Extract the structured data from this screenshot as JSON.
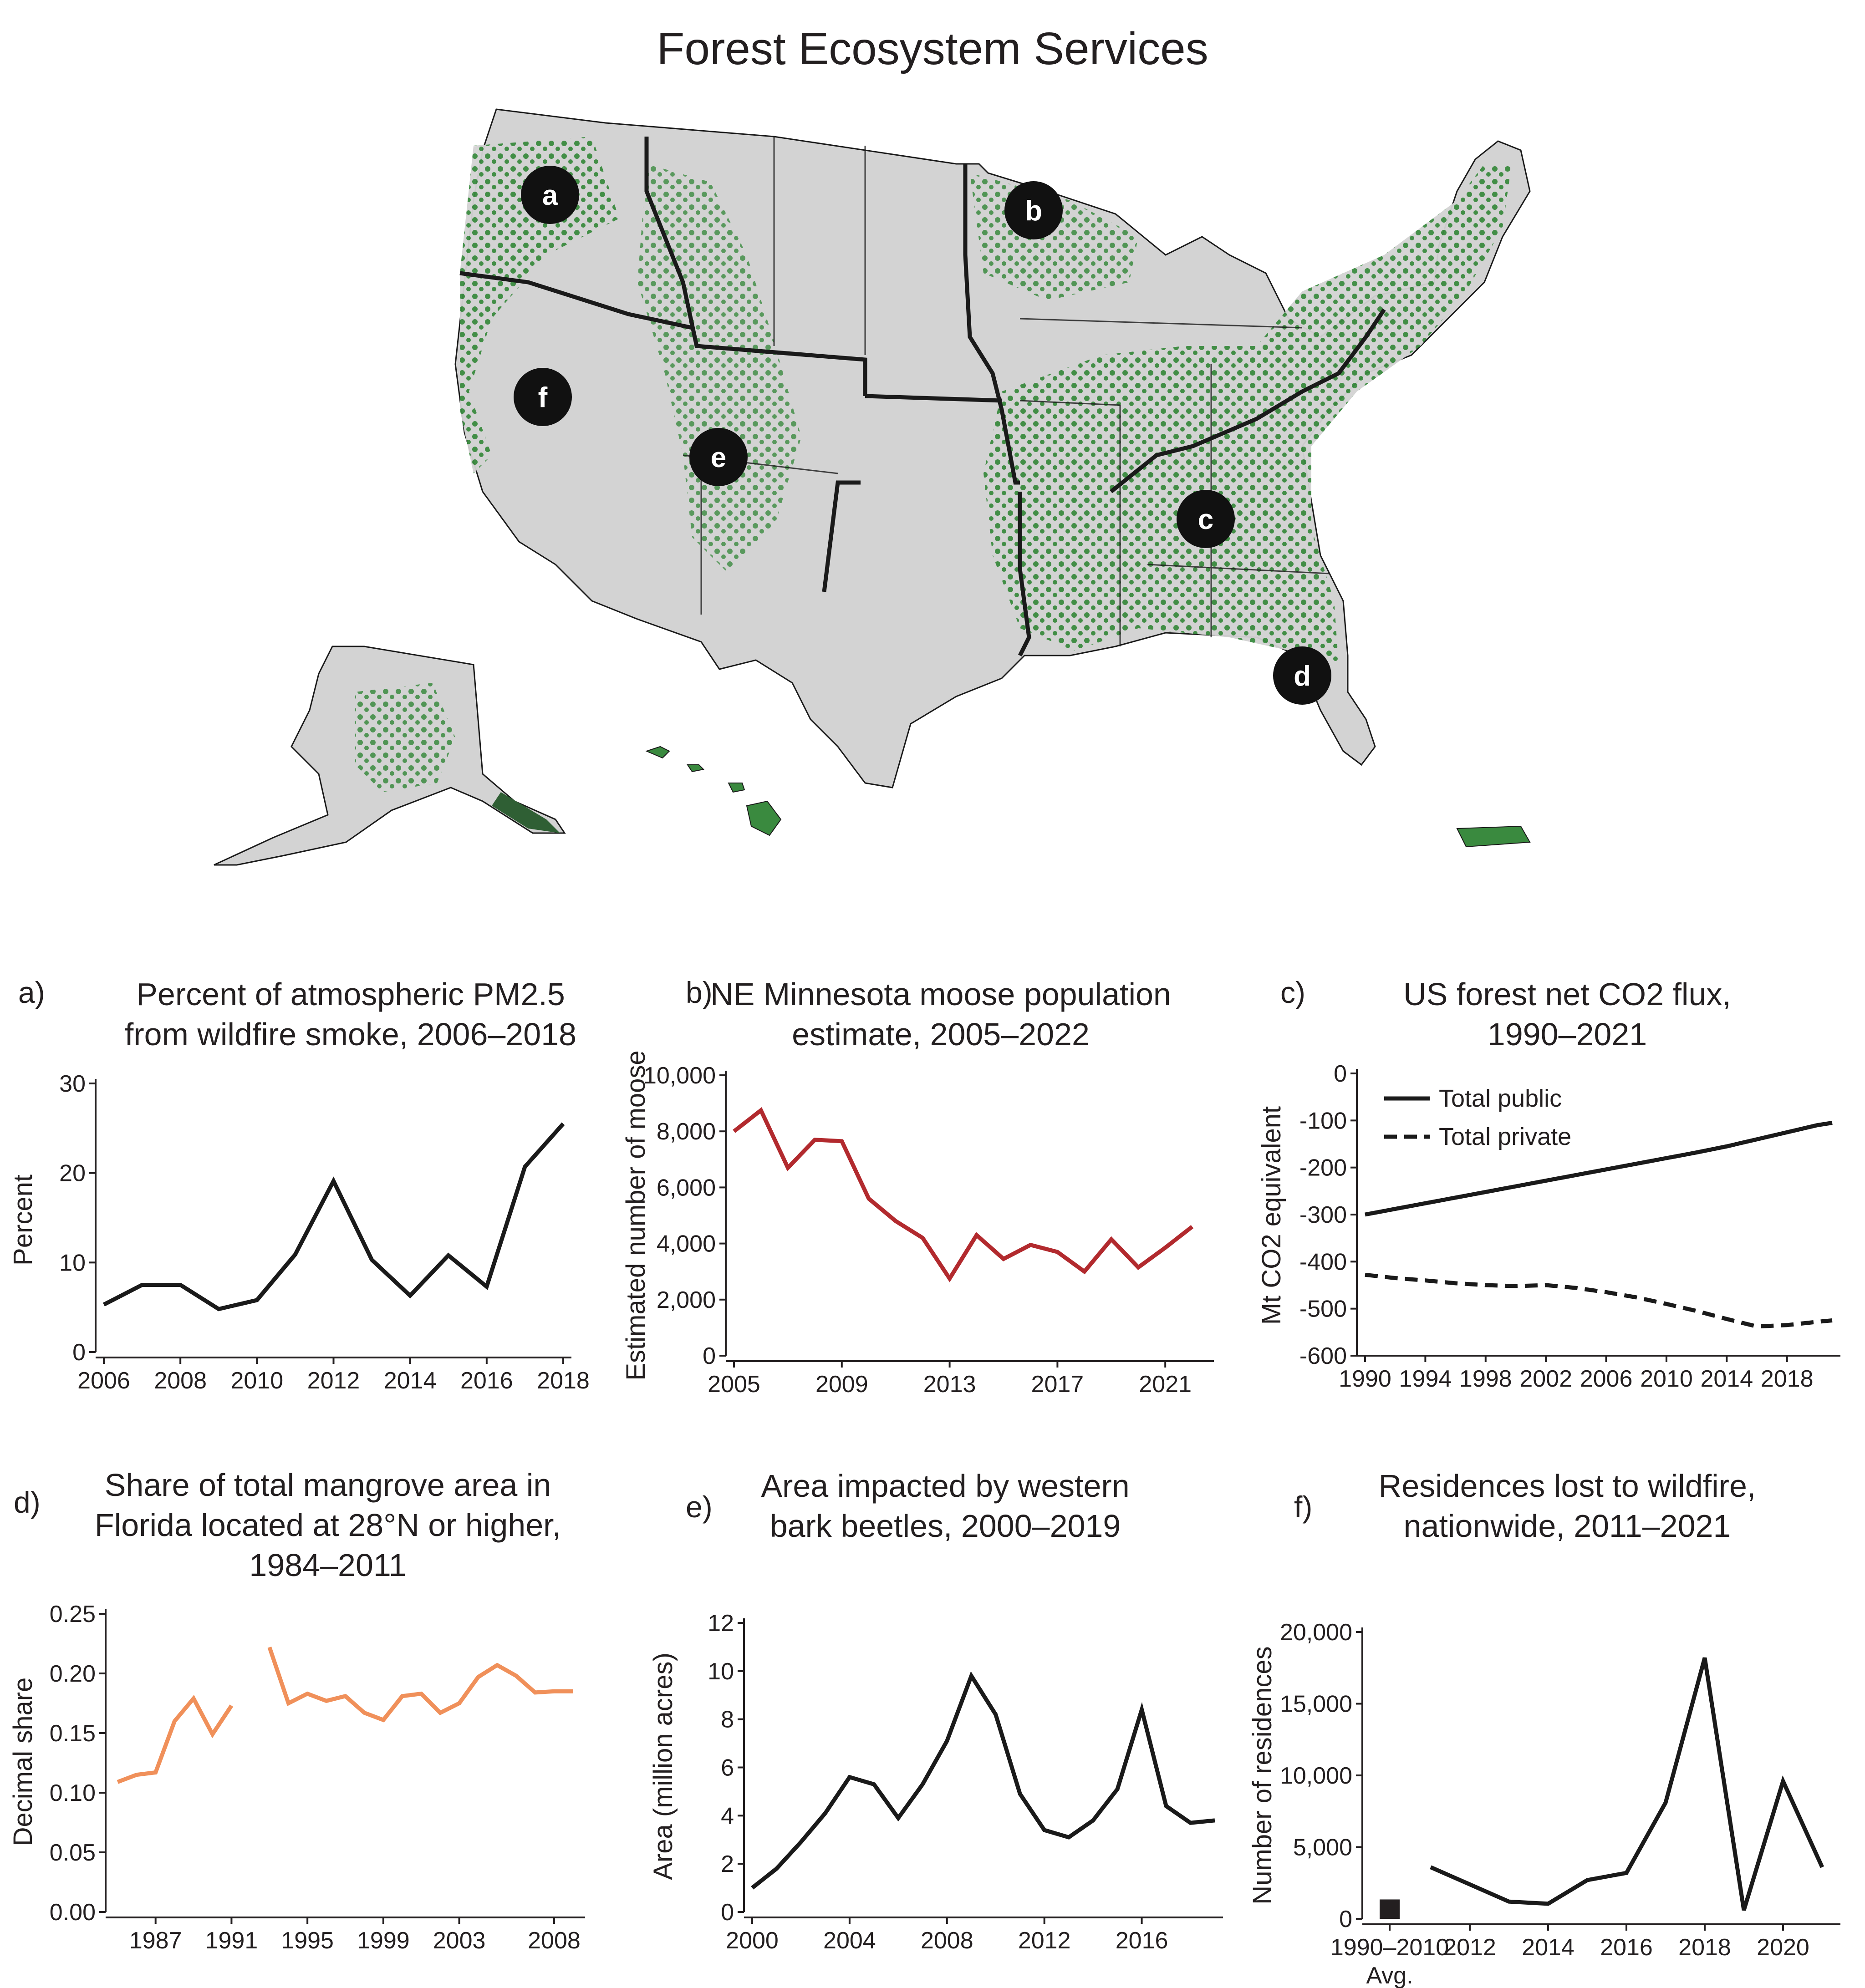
{
  "title": "Forest Ecosystem Services",
  "colors": {
    "forest": "#3a8a3f",
    "land": "#d3d3d3",
    "border": "#1a1a1a",
    "moose": "#b22a2e",
    "mangrove": "#f0905a",
    "line": "#1a1a1a"
  },
  "map": {
    "markers": [
      "a",
      "b",
      "c",
      "d",
      "e",
      "f"
    ]
  },
  "chart_data": [
    {
      "id": "a",
      "panel_letter": "a)",
      "type": "line",
      "title": "Percent of atmospheric PM2.5\nfrom wildfire smoke, 2006–2018",
      "ylabel": "Percent",
      "x": [
        2006,
        2007,
        2008,
        2009,
        2010,
        2011,
        2012,
        2013,
        2014,
        2015,
        2016,
        2017,
        2018
      ],
      "series": [
        {
          "values": [
            5.3,
            7.5,
            7.5,
            4.8,
            5.8,
            10.9,
            19.1,
            10.3,
            6.3,
            10.8,
            7.3,
            20.7,
            25.5
          ]
        }
      ],
      "xlim": [
        2006,
        2018
      ],
      "ylim": [
        0,
        30
      ],
      "xticks": [
        "2006",
        "2008",
        "2010",
        "2012",
        "2014",
        "2016",
        "2018"
      ],
      "yticks": [
        "0",
        "10",
        "20",
        "30"
      ],
      "color": "#1a1a1a"
    },
    {
      "id": "b",
      "panel_letter": "b)",
      "type": "line",
      "title": "NE Minnesota moose population\nestimate, 2005–2022",
      "ylabel": "Estimated number of moose",
      "x": [
        2005,
        2006,
        2007,
        2008,
        2009,
        2010,
        2011,
        2012,
        2013,
        2014,
        2015,
        2016,
        2017,
        2018,
        2019,
        2020,
        2021,
        2022
      ],
      "series": [
        {
          "values": [
            8000,
            8750,
            6700,
            7700,
            7650,
            5600,
            4800,
            4200,
            2750,
            4300,
            3450,
            3950,
            3700,
            3000,
            4150,
            3150,
            3850,
            4600
          ]
        }
      ],
      "xlim": [
        2005,
        2022.5
      ],
      "ylim": [
        0,
        10000
      ],
      "xticks": [
        "2005",
        "2009",
        "2013",
        "2017",
        "2021"
      ],
      "yticks": [
        "0",
        "2,000",
        "4,000",
        "6,000",
        "8,000",
        "10,000"
      ],
      "color": "#b22a2e"
    },
    {
      "id": "c",
      "panel_letter": "c)",
      "type": "line",
      "title": "US forest net CO2 flux,\n1990–2021",
      "ylabel": "Mt CO2 equivalent",
      "x": [
        1990,
        1992,
        1994,
        1996,
        1998,
        2000,
        2002,
        2004,
        2006,
        2008,
        2010,
        2012,
        2014,
        2016,
        2018,
        2020,
        2021
      ],
      "series": [
        {
          "name": "Total public",
          "dash": false,
          "values": [
            -300,
            -288,
            -276,
            -264,
            -252,
            -240,
            -228,
            -216,
            -204,
            -192,
            -180,
            -168,
            -155,
            -140,
            -125,
            -110,
            -105
          ]
        },
        {
          "name": "Total private",
          "dash": true,
          "values": [
            -428,
            -435,
            -440,
            -446,
            -450,
            -452,
            -450,
            -456,
            -465,
            -476,
            -490,
            -505,
            -522,
            -538,
            -535,
            -528,
            -525
          ]
        }
      ],
      "xlim": [
        1990,
        2021
      ],
      "ylim": [
        -600,
        0
      ],
      "xticks": [
        "1990",
        "1994",
        "1998",
        "2002",
        "2006",
        "2010",
        "2014",
        "2018"
      ],
      "yticks": [
        "-600",
        "-500",
        "-400",
        "-300",
        "-200",
        "-100",
        "0"
      ],
      "legend": "top-left",
      "color": "#1a1a1a"
    },
    {
      "id": "d",
      "panel_letter": "d)",
      "type": "line",
      "title": "Share of total mangrove area in\nFlorida located at 28°N or higher,\n1984–2011",
      "ylabel": "Decimal share",
      "x": [
        1985,
        1986,
        1987,
        1988,
        1989,
        1990,
        1991,
        1992,
        1993,
        1994,
        1995,
        1996,
        1997,
        1998,
        1999,
        2000,
        2001,
        2002,
        2003,
        2004,
        2005,
        2006,
        2007,
        2008,
        2009
      ],
      "series": [
        {
          "values": [
            0.109,
            0.115,
            0.117,
            0.16,
            0.179,
            0.149,
            0.173,
            null,
            0.222,
            0.175,
            0.183,
            0.177,
            0.181,
            0.167,
            0.161,
            0.181,
            0.183,
            0.167,
            0.175,
            0.197,
            0.207,
            0.198,
            0.184,
            0.185,
            0.185
          ]
        }
      ],
      "xlim": [
        1984.8,
        2009.2
      ],
      "ylim": [
        0,
        0.25
      ],
      "xticks": [
        "1987",
        "1991",
        "1995",
        "1999",
        "2003",
        "2008"
      ],
      "yticks": [
        "0.00",
        "0.05",
        "0.10",
        "0.15",
        "0.20",
        "0.25"
      ],
      "color": "#f0905a"
    },
    {
      "id": "e",
      "panel_letter": "e)",
      "type": "line",
      "title": "Area impacted by western\nbark beetles, 2000–2019",
      "ylabel": "Area (million acres)",
      "x": [
        2000,
        2001,
        2002,
        2003,
        2004,
        2005,
        2006,
        2007,
        2008,
        2009,
        2010,
        2011,
        2012,
        2013,
        2014,
        2015,
        2016,
        2017,
        2018,
        2019
      ],
      "series": [
        {
          "values": [
            1.0,
            1.8,
            2.9,
            4.1,
            5.6,
            5.3,
            3.9,
            5.3,
            7.1,
            9.8,
            8.2,
            4.9,
            3.4,
            3.1,
            3.8,
            5.1,
            8.4,
            4.4,
            3.7,
            3.8
          ]
        }
      ],
      "xlim": [
        2000,
        2019
      ],
      "ylim": [
        0,
        12
      ],
      "xticks": [
        "2000",
        "2004",
        "2008",
        "2012",
        "2016"
      ],
      "yticks": [
        "0",
        "2",
        "4",
        "6",
        "8",
        "10",
        "12"
      ],
      "color": "#1a1a1a"
    },
    {
      "id": "f",
      "panel_letter": "f)",
      "type": "line",
      "title": "Residences lost to wildfire,\nnationwide, 2011–2021",
      "ylabel": "Number of residences",
      "bar": {
        "label": "1990–2010",
        "sublabel": "Avg.",
        "value": 1350
      },
      "x": [
        2011,
        2012,
        2013,
        2014,
        2015,
        2016,
        2017,
        2018,
        2019,
        2020,
        2021
      ],
      "series": [
        {
          "values": [
            3600,
            2400,
            1200,
            1050,
            2700,
            3200,
            8100,
            18200,
            600,
            9600,
            3600
          ]
        }
      ],
      "ylim": [
        0,
        20000
      ],
      "xticks": [
        "1990–2010",
        "2012",
        "2014",
        "2016",
        "2018",
        "2020"
      ],
      "yticks": [
        "0",
        "5,000",
        "10,000",
        "15,000",
        "20,000"
      ],
      "color": "#1a1a1a"
    }
  ]
}
